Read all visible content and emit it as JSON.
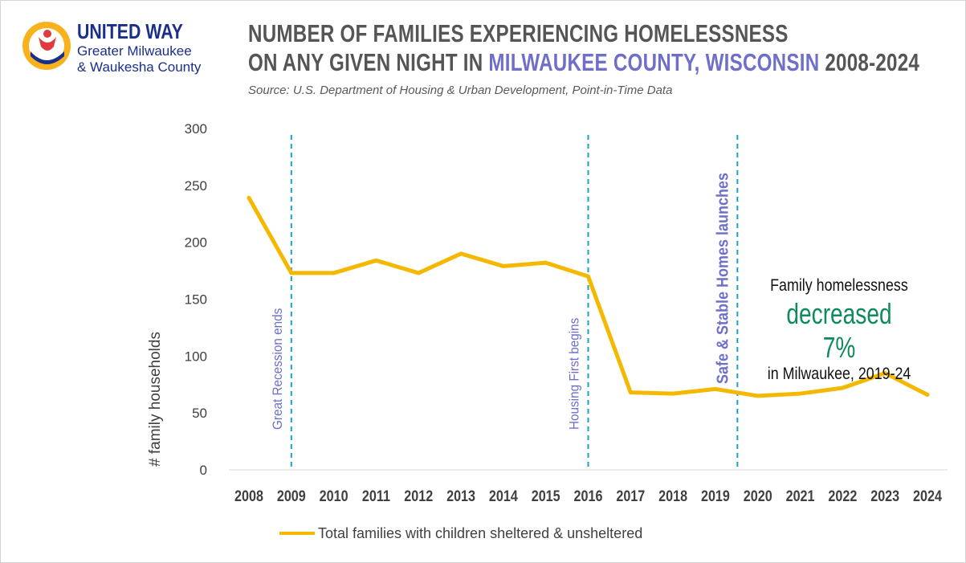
{
  "logo": {
    "name": "UNITED WAY",
    "line1": "Greater Milwaukee",
    "line2": "& Waukesha County"
  },
  "title": {
    "line1": "NUMBER OF FAMILIES EXPERIENCING HOMELESSNESS",
    "line2_prefix": "ON ANY GIVEN NIGHT IN ",
    "line2_highlight": "MILWAUKEE COUNTY, WISCONSIN",
    "line2_suffix": " 2008-2024"
  },
  "source": "Source: U.S. Department of Housing & Urban Development, Point-in-Time Data",
  "callout": {
    "line1": "Family homelessness",
    "line2": "decreased 7%",
    "line3": "in Milwaukee, 2019-24"
  },
  "colors": {
    "series": "#f5b800",
    "marker_line": "#1aa2c4",
    "annotation_text": "#6f6fc9",
    "highlight_green": "#0f8a5a"
  },
  "chart_data": {
    "type": "line",
    "ylabel": "# family households",
    "xlabel": "",
    "ylim": [
      0,
      300
    ],
    "yticks": [
      0,
      50,
      100,
      150,
      200,
      250,
      300
    ],
    "grid": false,
    "categories": [
      "2008",
      "2009",
      "2010",
      "2011",
      "2012",
      "2013",
      "2014",
      "2015",
      "2016",
      "2017",
      "2018",
      "2019",
      "2020",
      "2021",
      "2022",
      "2023",
      "2024"
    ],
    "series": [
      {
        "name": "Total families with children sheltered & unsheltered",
        "values": [
          239,
          173,
          173,
          184,
          173,
          190,
          179,
          182,
          170,
          68,
          67,
          71,
          65,
          67,
          72,
          85,
          66
        ]
      }
    ],
    "markers": [
      {
        "x": "2009",
        "label": "Great Recession ends"
      },
      {
        "x": "2016",
        "label": "Housing First begins"
      },
      {
        "x": "2019.5",
        "label": "Safe & Stable Homes launches"
      }
    ],
    "legend_position": "bottom"
  }
}
